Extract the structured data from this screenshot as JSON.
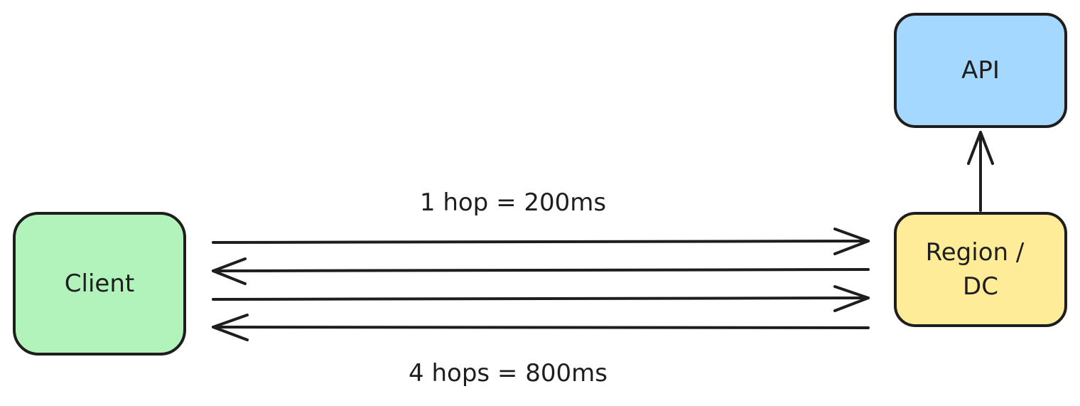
{
  "nodes": {
    "client": {
      "label": "Client",
      "color": "#b2f2bb"
    },
    "region": {
      "label_line1": "Region /",
      "label_line2": "DC",
      "color": "#ffec99"
    },
    "api": {
      "label": "API",
      "color": "#a5d8ff"
    }
  },
  "edges": {
    "top_label": "1 hop = 200ms",
    "bottom_label": "4 hops = 800ms",
    "hops": [
      {
        "from": "client",
        "to": "region"
      },
      {
        "from": "region",
        "to": "client"
      },
      {
        "from": "client",
        "to": "region"
      },
      {
        "from": "region",
        "to": "client"
      }
    ],
    "upstream": {
      "from": "region",
      "to": "api"
    }
  },
  "colors": {
    "stroke": "#1e1e1e",
    "background": "#ffffff"
  }
}
